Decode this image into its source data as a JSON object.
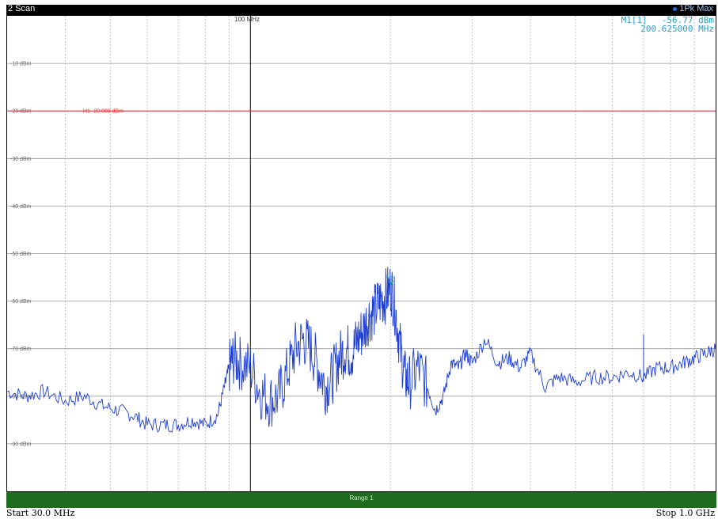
{
  "window": {
    "title": "2 Scan",
    "trace_label": "1Pk Max"
  },
  "marker": {
    "name": "M1[1]",
    "level": "-56.77 dBm",
    "frequency": "200.625000 MHz",
    "tag": "M1"
  },
  "limit_line": {
    "label": "H1 -20.000 dBm"
  },
  "ref_label": "100 MHz",
  "range_label": "Range 1",
  "start_label": "Start 30.0 MHz",
  "stop_label": "Stop 1.0 GHz",
  "colors": {
    "trace": "#1f3fd0",
    "limit": "#d9342b",
    "marker": "#2a9fc4",
    "range_bar": "#1e6b1e"
  },
  "chart_data": {
    "type": "line",
    "xscale": "log",
    "xlim": [
      30,
      1000
    ],
    "ylim": [
      -100,
      0
    ],
    "y_ticks": [
      {
        "value": -10,
        "label": "-10 dBm"
      },
      {
        "value": -20,
        "label": "-20 dBm"
      },
      {
        "value": -30,
        "label": "-30 dBm"
      },
      {
        "value": -40,
        "label": "-40 dBm"
      },
      {
        "value": -50,
        "label": "-50 dBm"
      },
      {
        "value": -60,
        "label": "-60 dBm"
      },
      {
        "value": -70,
        "label": "-70 dBm"
      },
      {
        "value": -80,
        "label": "-80 dBm"
      },
      {
        "value": -90,
        "label": "-90 dBm"
      }
    ],
    "limit_value": -20,
    "ref_frequency": 100,
    "marker": {
      "x": 200.625,
      "y": -56.77
    },
    "series": [
      {
        "x": [
          30,
          33,
          36,
          40,
          44,
          48,
          52,
          56,
          60,
          65,
          70,
          75,
          80,
          85,
          88,
          90,
          92,
          95,
          100,
          105,
          110,
          115,
          120,
          125,
          130,
          135,
          140,
          145,
          150,
          155,
          160,
          165,
          170,
          175,
          180,
          185,
          190,
          195,
          200.6,
          205,
          210,
          215,
          220,
          230,
          240,
          250,
          260,
          270,
          280,
          290,
          300,
          320,
          340,
          360,
          380,
          400,
          430,
          460,
          500,
          550,
          600,
          650,
          700,
          750,
          800,
          850,
          900,
          950,
          1000
        ],
        "y": [
          -79,
          -80,
          -79,
          -81,
          -80,
          -82,
          -83,
          -84,
          -86,
          -86,
          -86,
          -85,
          -86,
          -84,
          -78,
          -74,
          -72,
          -73,
          -74,
          -79,
          -81,
          -80,
          -75,
          -70,
          -68,
          -70,
          -74,
          -78,
          -76,
          -72,
          -70,
          -71,
          -68,
          -66,
          -63,
          -62,
          -60,
          -59,
          -57,
          -62,
          -70,
          -76,
          -77,
          -74,
          -78,
          -83,
          -80,
          -73,
          -74,
          -71,
          -73,
          -68,
          -73,
          -72,
          -74,
          -71,
          -78,
          -76,
          -77,
          -76,
          -76,
          -75,
          -76,
          -74,
          -74,
          -73,
          -72,
          -71,
          -70
        ]
      }
    ]
  }
}
